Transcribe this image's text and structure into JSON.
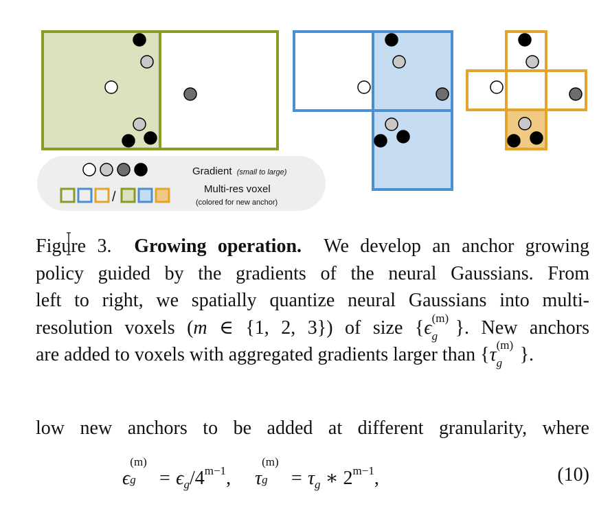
{
  "figure": {
    "legend": {
      "gradient_label": "Gradient",
      "gradient_note": "(small to large)",
      "voxel_label": "Multi-res voxel",
      "voxel_note": "(colored for new anchor)",
      "separator": "/"
    },
    "colors": {
      "green": "#8a9a26",
      "green_fill": "#dde2be",
      "blue": "#4a90d0",
      "blue_fill": "#c6dcf3",
      "orange": "#e3a42e",
      "orange_fill": "#f0c983",
      "grad_small": "#ffffff",
      "grad_mid": "#c8c8c8",
      "grad_high": "#6e6e6e",
      "grad_large": "#000000",
      "legend_bg": "#eeeeee"
    }
  },
  "caption": {
    "label": "Figure 3.",
    "title": "Growing operation.",
    "line1_rest": "We develop an anchor growing",
    "line2": "policy guided by the gradients of the neural Gaussians. From",
    "line3": "left to right, we spatially quantize neural Gaussians into multi-",
    "line4_a": "resolution voxels (",
    "line4_m": "m",
    "line4_in": " ∈ {1, 2, 3}) of size {",
    "line4_eps": "ϵ",
    "line4_sup": "(m)",
    "line4_sub": "g",
    "line4_b": "}.  New anchors",
    "line5_a": "are added to voxels with aggregated gradients larger than {",
    "line5_tau": "τ",
    "line5_sup": "(m)",
    "line5_sub": "g",
    "line5_b": "}."
  },
  "body_text": "low new anchors to be added at different granularity, where",
  "equation": {
    "eps": "ϵ",
    "sup_m": "(m)",
    "sub_g": "g",
    "rhs1_a": " = ϵ",
    "rhs1_b": "/4",
    "exp1": "m−1",
    "comma": ",",
    "tau": "τ",
    "rhs2_a": " = τ",
    "rhs2_b": " ∗ 2",
    "exp2": "m−1",
    "comma2": ",",
    "number": "(10)"
  }
}
